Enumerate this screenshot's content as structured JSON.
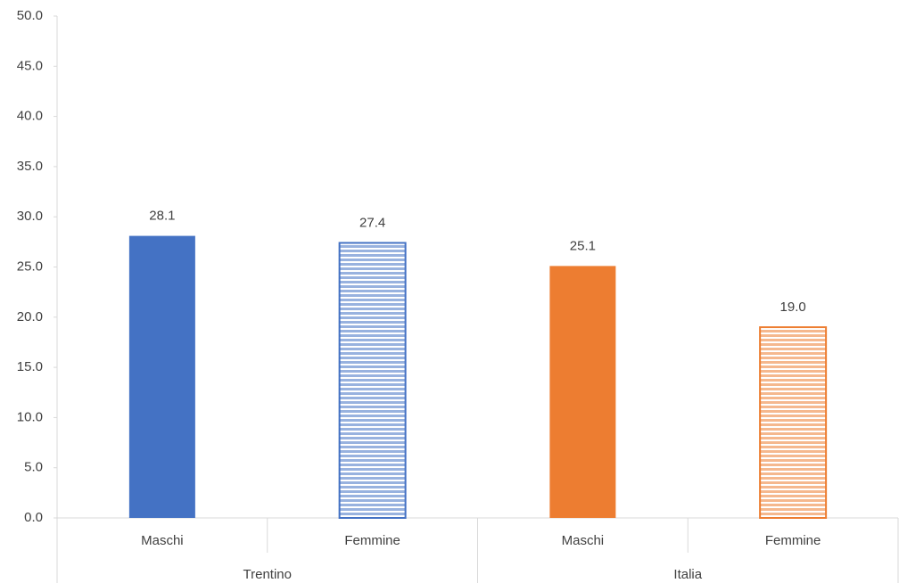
{
  "chart_data": {
    "type": "bar",
    "groups": [
      {
        "name": "Trentino",
        "categories": [
          "Maschi",
          "Femmine"
        ],
        "values": [
          28.1,
          27.4
        ],
        "value_labels": [
          "28.1",
          "27.4"
        ],
        "colors": [
          "#4472c4",
          "#4472c4"
        ],
        "patterns": [
          "solid",
          "stripes"
        ]
      },
      {
        "name": "Italia",
        "categories": [
          "Maschi",
          "Femmine"
        ],
        "values": [
          25.1,
          19.0
        ],
        "value_labels": [
          "25.1",
          "19.0"
        ],
        "colors": [
          "#ed7d31",
          "#ed7d31"
        ],
        "patterns": [
          "solid",
          "stripes"
        ]
      }
    ],
    "ylim": [
      0,
      50
    ],
    "yticks": [
      {
        "value": 0,
        "label": "0.0"
      },
      {
        "value": 5,
        "label": "5.0"
      },
      {
        "value": 10,
        "label": "10.0"
      },
      {
        "value": 15,
        "label": "15.0"
      },
      {
        "value": 20,
        "label": "20.0"
      },
      {
        "value": 25,
        "label": "25.0"
      },
      {
        "value": 30,
        "label": "30.0"
      },
      {
        "value": 35,
        "label": "35.0"
      },
      {
        "value": 40,
        "label": "40.0"
      },
      {
        "value": 45,
        "label": "45.0"
      },
      {
        "value": 50,
        "label": "50.0"
      }
    ],
    "grid": false
  }
}
